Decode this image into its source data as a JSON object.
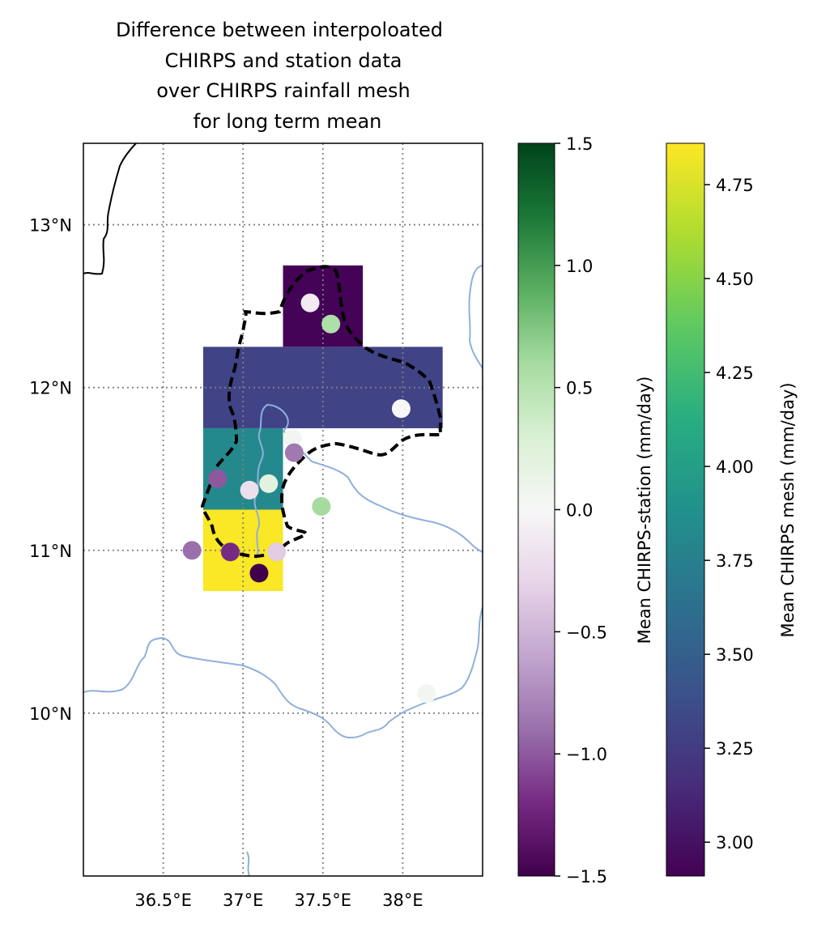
{
  "chart_data": {
    "type": "heatmap",
    "title_lines": [
      "Difference between interpoloated",
      "CHIRPS and station data",
      "over CHIRPS rainfall mesh",
      "for long term mean"
    ],
    "map": {
      "lon_range": [
        36.0,
        38.5
      ],
      "lat_range": [
        9.0,
        13.5
      ],
      "x_ticks": [
        {
          "value": 36.5,
          "label": "36.5°E"
        },
        {
          "value": 37.0,
          "label": "37°E"
        },
        {
          "value": 37.5,
          "label": "37.5°E"
        },
        {
          "value": 38.0,
          "label": "38°E"
        }
      ],
      "y_ticks": [
        {
          "value": 10,
          "label": "10°N"
        },
        {
          "value": 11,
          "label": "11°N"
        },
        {
          "value": 12,
          "label": "12°N"
        },
        {
          "value": 13,
          "label": "13°N"
        }
      ],
      "grid": true
    },
    "mesh": {
      "series_label": "Mean CHIRPS mesh (mm/day)",
      "colormap": "viridis",
      "cells": [
        {
          "lon": [
            37.25,
            37.75
          ],
          "lat": [
            12.25,
            12.75
          ],
          "value": 2.92
        },
        {
          "lon": [
            36.75,
            38.25
          ],
          "lat": [
            11.75,
            12.25
          ],
          "value": 3.3
        },
        {
          "lon": [
            36.75,
            37.25
          ],
          "lat": [
            11.25,
            11.75
          ],
          "value": 3.82
        },
        {
          "lon": [
            36.75,
            37.25
          ],
          "lat": [
            10.75,
            11.25
          ],
          "value": 4.85
        }
      ]
    },
    "stations": {
      "series_label": "Mean CHIRPS-station (mm/day)",
      "colormap": "PRGn",
      "points": [
        {
          "lon": 37.42,
          "lat": 12.52,
          "value": -0.1
        },
        {
          "lon": 37.55,
          "lat": 12.39,
          "value": 0.55
        },
        {
          "lon": 37.99,
          "lat": 11.87,
          "value": 0.0
        },
        {
          "lon": 37.31,
          "lat": 11.69,
          "value": 0.05
        },
        {
          "lon": 37.32,
          "lat": 11.6,
          "value": -0.85
        },
        {
          "lon": 36.84,
          "lat": 11.44,
          "value": -1.0
        },
        {
          "lon": 37.04,
          "lat": 11.37,
          "value": -0.2
        },
        {
          "lon": 37.16,
          "lat": 11.41,
          "value": 0.2
        },
        {
          "lon": 37.49,
          "lat": 11.27,
          "value": 0.6
        },
        {
          "lon": 36.68,
          "lat": 11.0,
          "value": -0.9
        },
        {
          "lon": 36.92,
          "lat": 10.99,
          "value": -1.2
        },
        {
          "lon": 37.21,
          "lat": 10.99,
          "value": -0.35
        },
        {
          "lon": 37.1,
          "lat": 10.86,
          "value": -1.5
        },
        {
          "lon": 38.15,
          "lat": 10.12,
          "value": 0.05
        }
      ]
    },
    "colorbars": [
      {
        "label": "Mean CHIRPS-station (mm/day)",
        "colormap": "PRGn",
        "range": [
          -1.5,
          1.5
        ],
        "ticks": [
          {
            "value": -1.5,
            "label": "−1.5"
          },
          {
            "value": -1.0,
            "label": "−1.0"
          },
          {
            "value": -0.5,
            "label": "−0.5"
          },
          {
            "value": 0.0,
            "label": "0.0"
          },
          {
            "value": 0.5,
            "label": "0.5"
          },
          {
            "value": 1.0,
            "label": "1.0"
          },
          {
            "value": 1.5,
            "label": "1.5"
          }
        ]
      },
      {
        "label": "Mean CHIRPS mesh (mm/day)",
        "colormap": "viridis",
        "range": [
          2.91,
          4.86
        ],
        "ticks": [
          {
            "value": 3.0,
            "label": "3.00"
          },
          {
            "value": 3.25,
            "label": "3.25"
          },
          {
            "value": 3.5,
            "label": "3.50"
          },
          {
            "value": 3.75,
            "label": "3.75"
          },
          {
            "value": 4.0,
            "label": "4.00"
          },
          {
            "value": 4.25,
            "label": "4.25"
          },
          {
            "value": 4.5,
            "label": "4.50"
          },
          {
            "value": 4.75,
            "label": "4.75"
          }
        ]
      }
    ],
    "colors": {
      "river": "#8fb0dc",
      "coastline": "#000000",
      "basin_outline": "#000000",
      "grid": "#808080"
    }
  }
}
